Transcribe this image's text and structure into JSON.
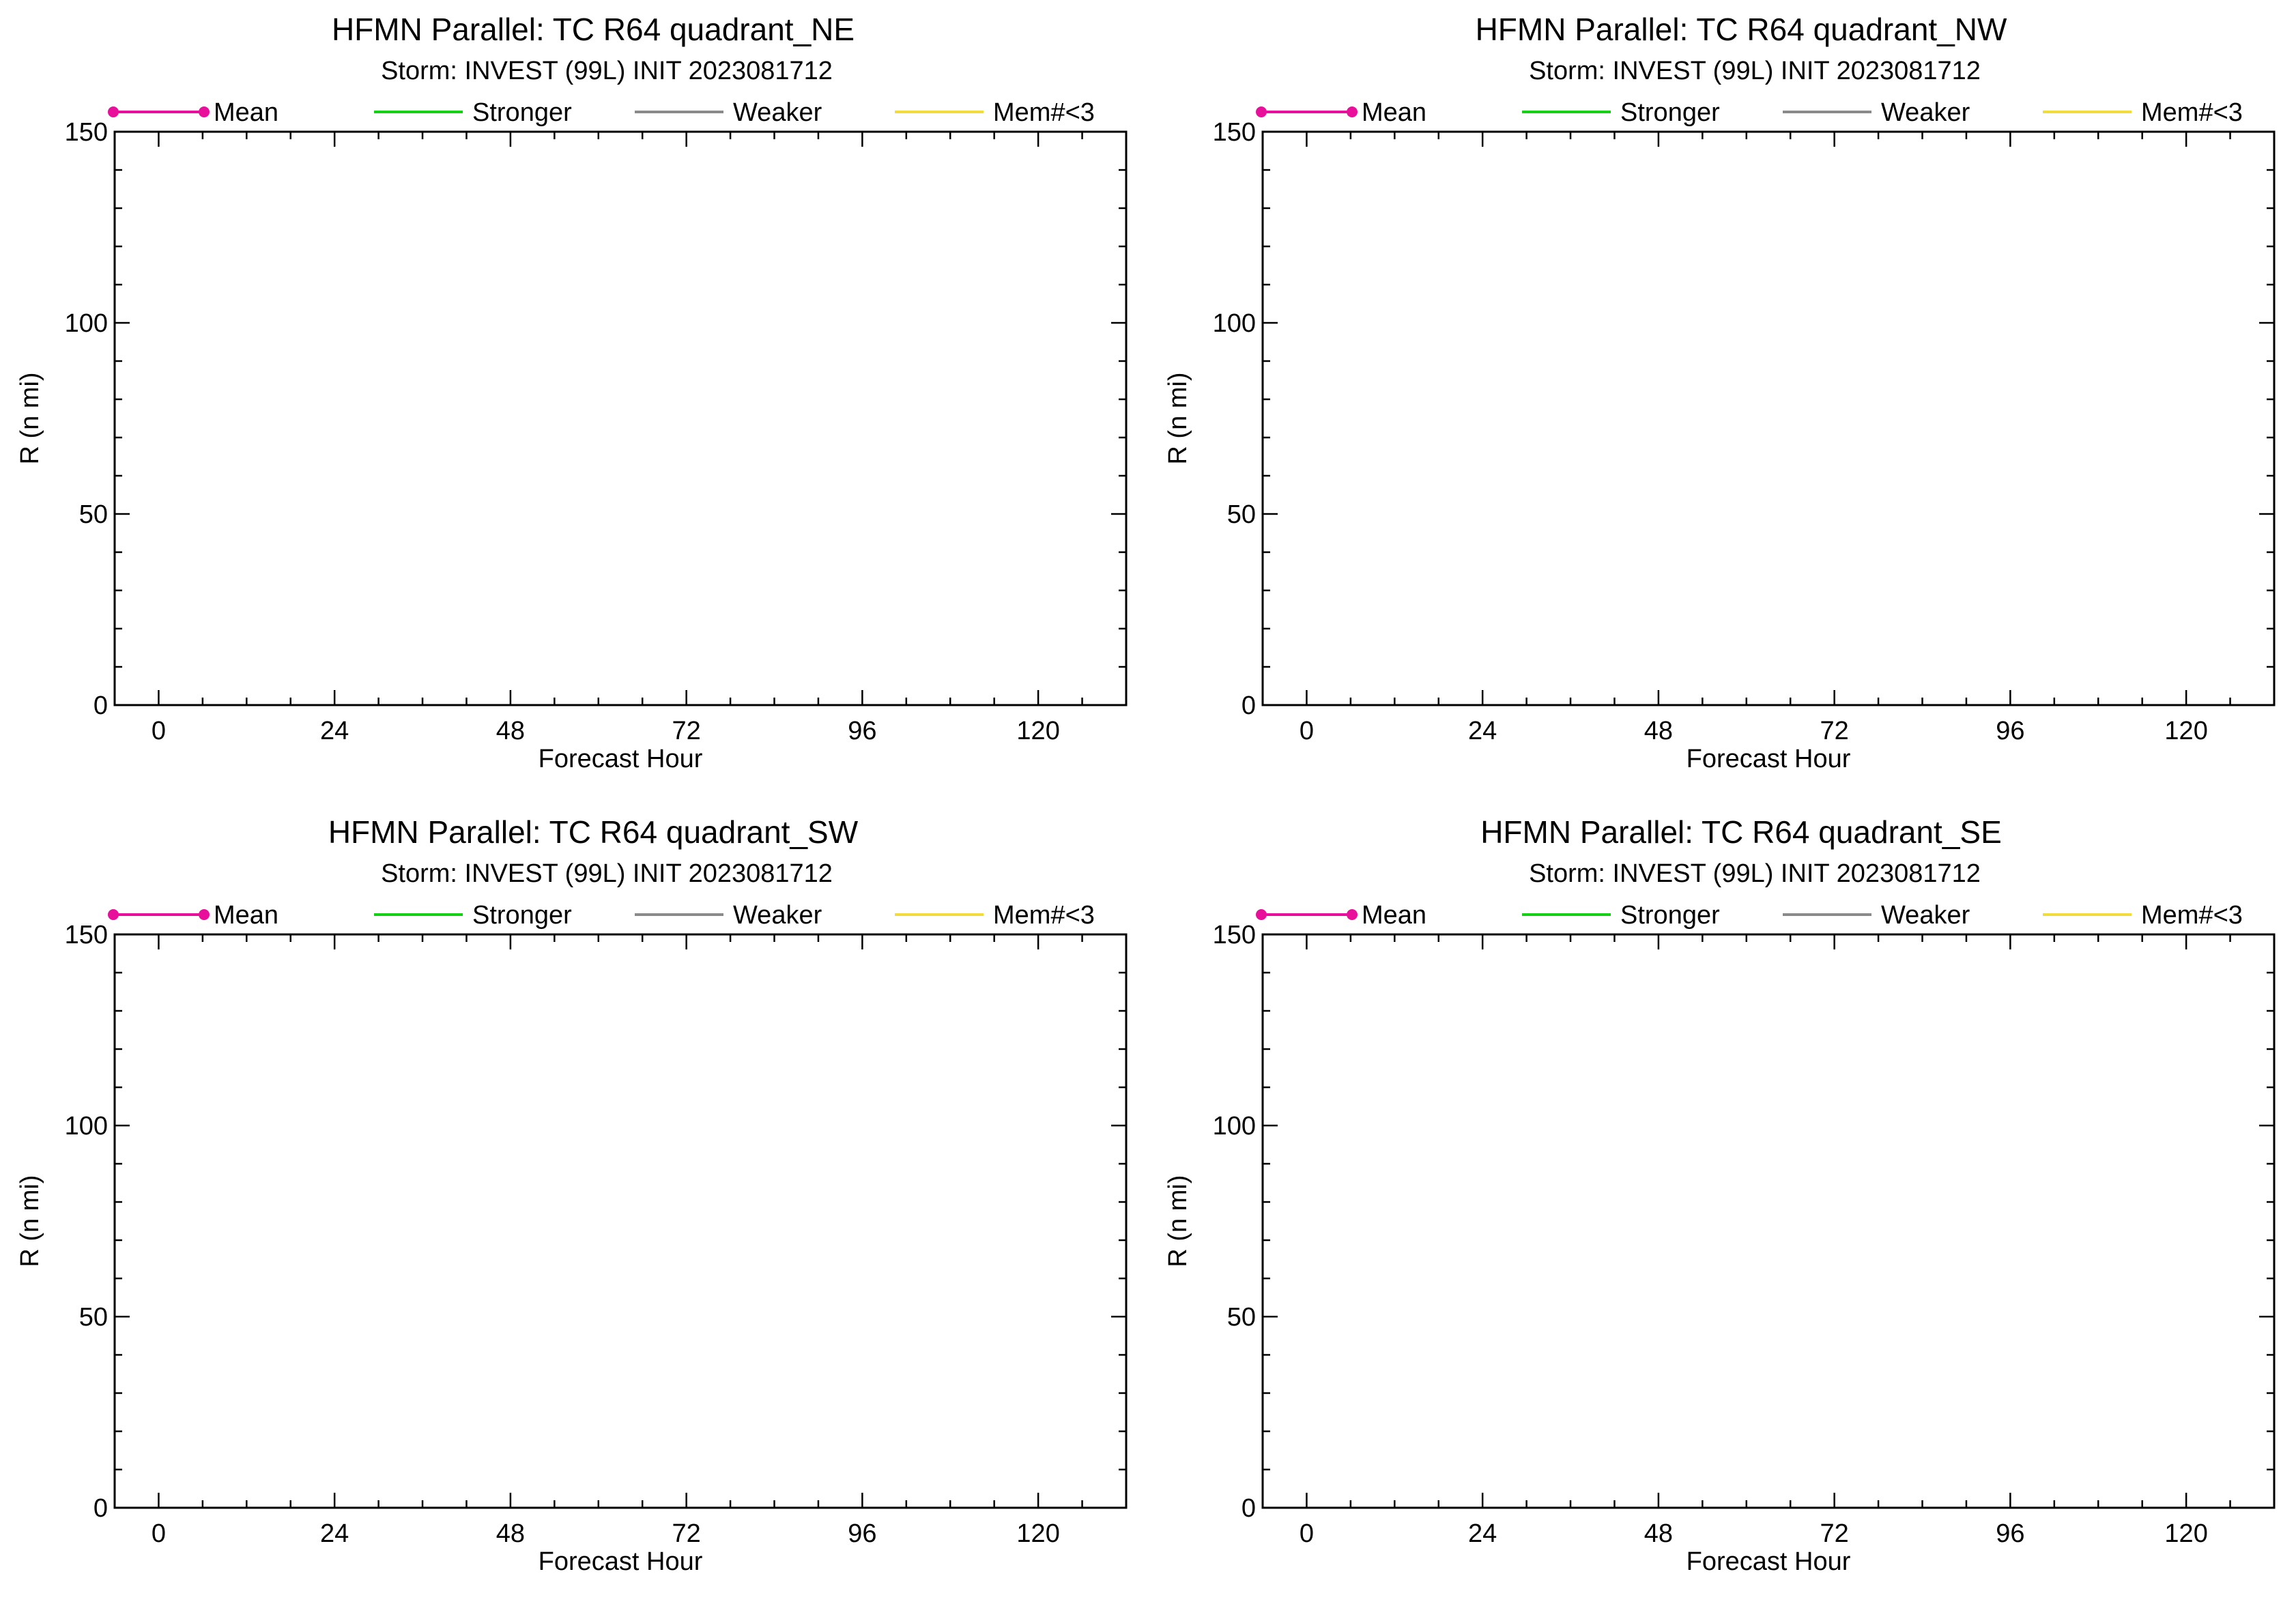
{
  "legend": {
    "mean": "Mean",
    "stronger": "Stronger",
    "weaker": "Weaker",
    "mem": "Mem#<3"
  },
  "colors": {
    "mean": "#e8109a",
    "stronger": "#16d016",
    "weaker": "#8a8a8a",
    "mem": "#f2dc3c",
    "axis": "#000000"
  },
  "chart_data": [
    {
      "type": "line",
      "title": "HFMN Parallel: TC  R64 quadrant_NE",
      "subtitle": "Storm: INVEST (99L) INIT 2023081712",
      "xlabel": "Forecast Hour",
      "ylabel": "R (n mi)",
      "xlim": [
        -6,
        132
      ],
      "ylim": [
        0,
        150
      ],
      "xticks": [
        0,
        24,
        48,
        72,
        96,
        120
      ],
      "yticks": [
        0,
        50,
        100,
        150
      ],
      "grid": false,
      "legend_position": "top",
      "series": []
    },
    {
      "type": "line",
      "title": "HFMN Parallel: TC  R64 quadrant_NW",
      "subtitle": "Storm: INVEST (99L) INIT 2023081712",
      "xlabel": "Forecast Hour",
      "ylabel": "R (n mi)",
      "xlim": [
        -6,
        132
      ],
      "ylim": [
        0,
        150
      ],
      "xticks": [
        0,
        24,
        48,
        72,
        96,
        120
      ],
      "yticks": [
        0,
        50,
        100,
        150
      ],
      "grid": false,
      "legend_position": "top",
      "series": []
    },
    {
      "type": "line",
      "title": "HFMN Parallel: TC  R64 quadrant_SW",
      "subtitle": "Storm: INVEST (99L) INIT 2023081712",
      "xlabel": "Forecast Hour",
      "ylabel": "R (n mi)",
      "xlim": [
        -6,
        132
      ],
      "ylim": [
        0,
        150
      ],
      "xticks": [
        0,
        24,
        48,
        72,
        96,
        120
      ],
      "yticks": [
        0,
        50,
        100,
        150
      ],
      "grid": false,
      "legend_position": "top",
      "series": []
    },
    {
      "type": "line",
      "title": "HFMN Parallel: TC  R64 quadrant_SE",
      "subtitle": "Storm: INVEST (99L) INIT 2023081712",
      "xlabel": "Forecast Hour",
      "ylabel": "R (n mi)",
      "xlim": [
        -6,
        132
      ],
      "ylim": [
        0,
        150
      ],
      "xticks": [
        0,
        24,
        48,
        72,
        96,
        120
      ],
      "yticks": [
        0,
        50,
        100,
        150
      ],
      "grid": false,
      "legend_position": "top",
      "series": []
    }
  ]
}
